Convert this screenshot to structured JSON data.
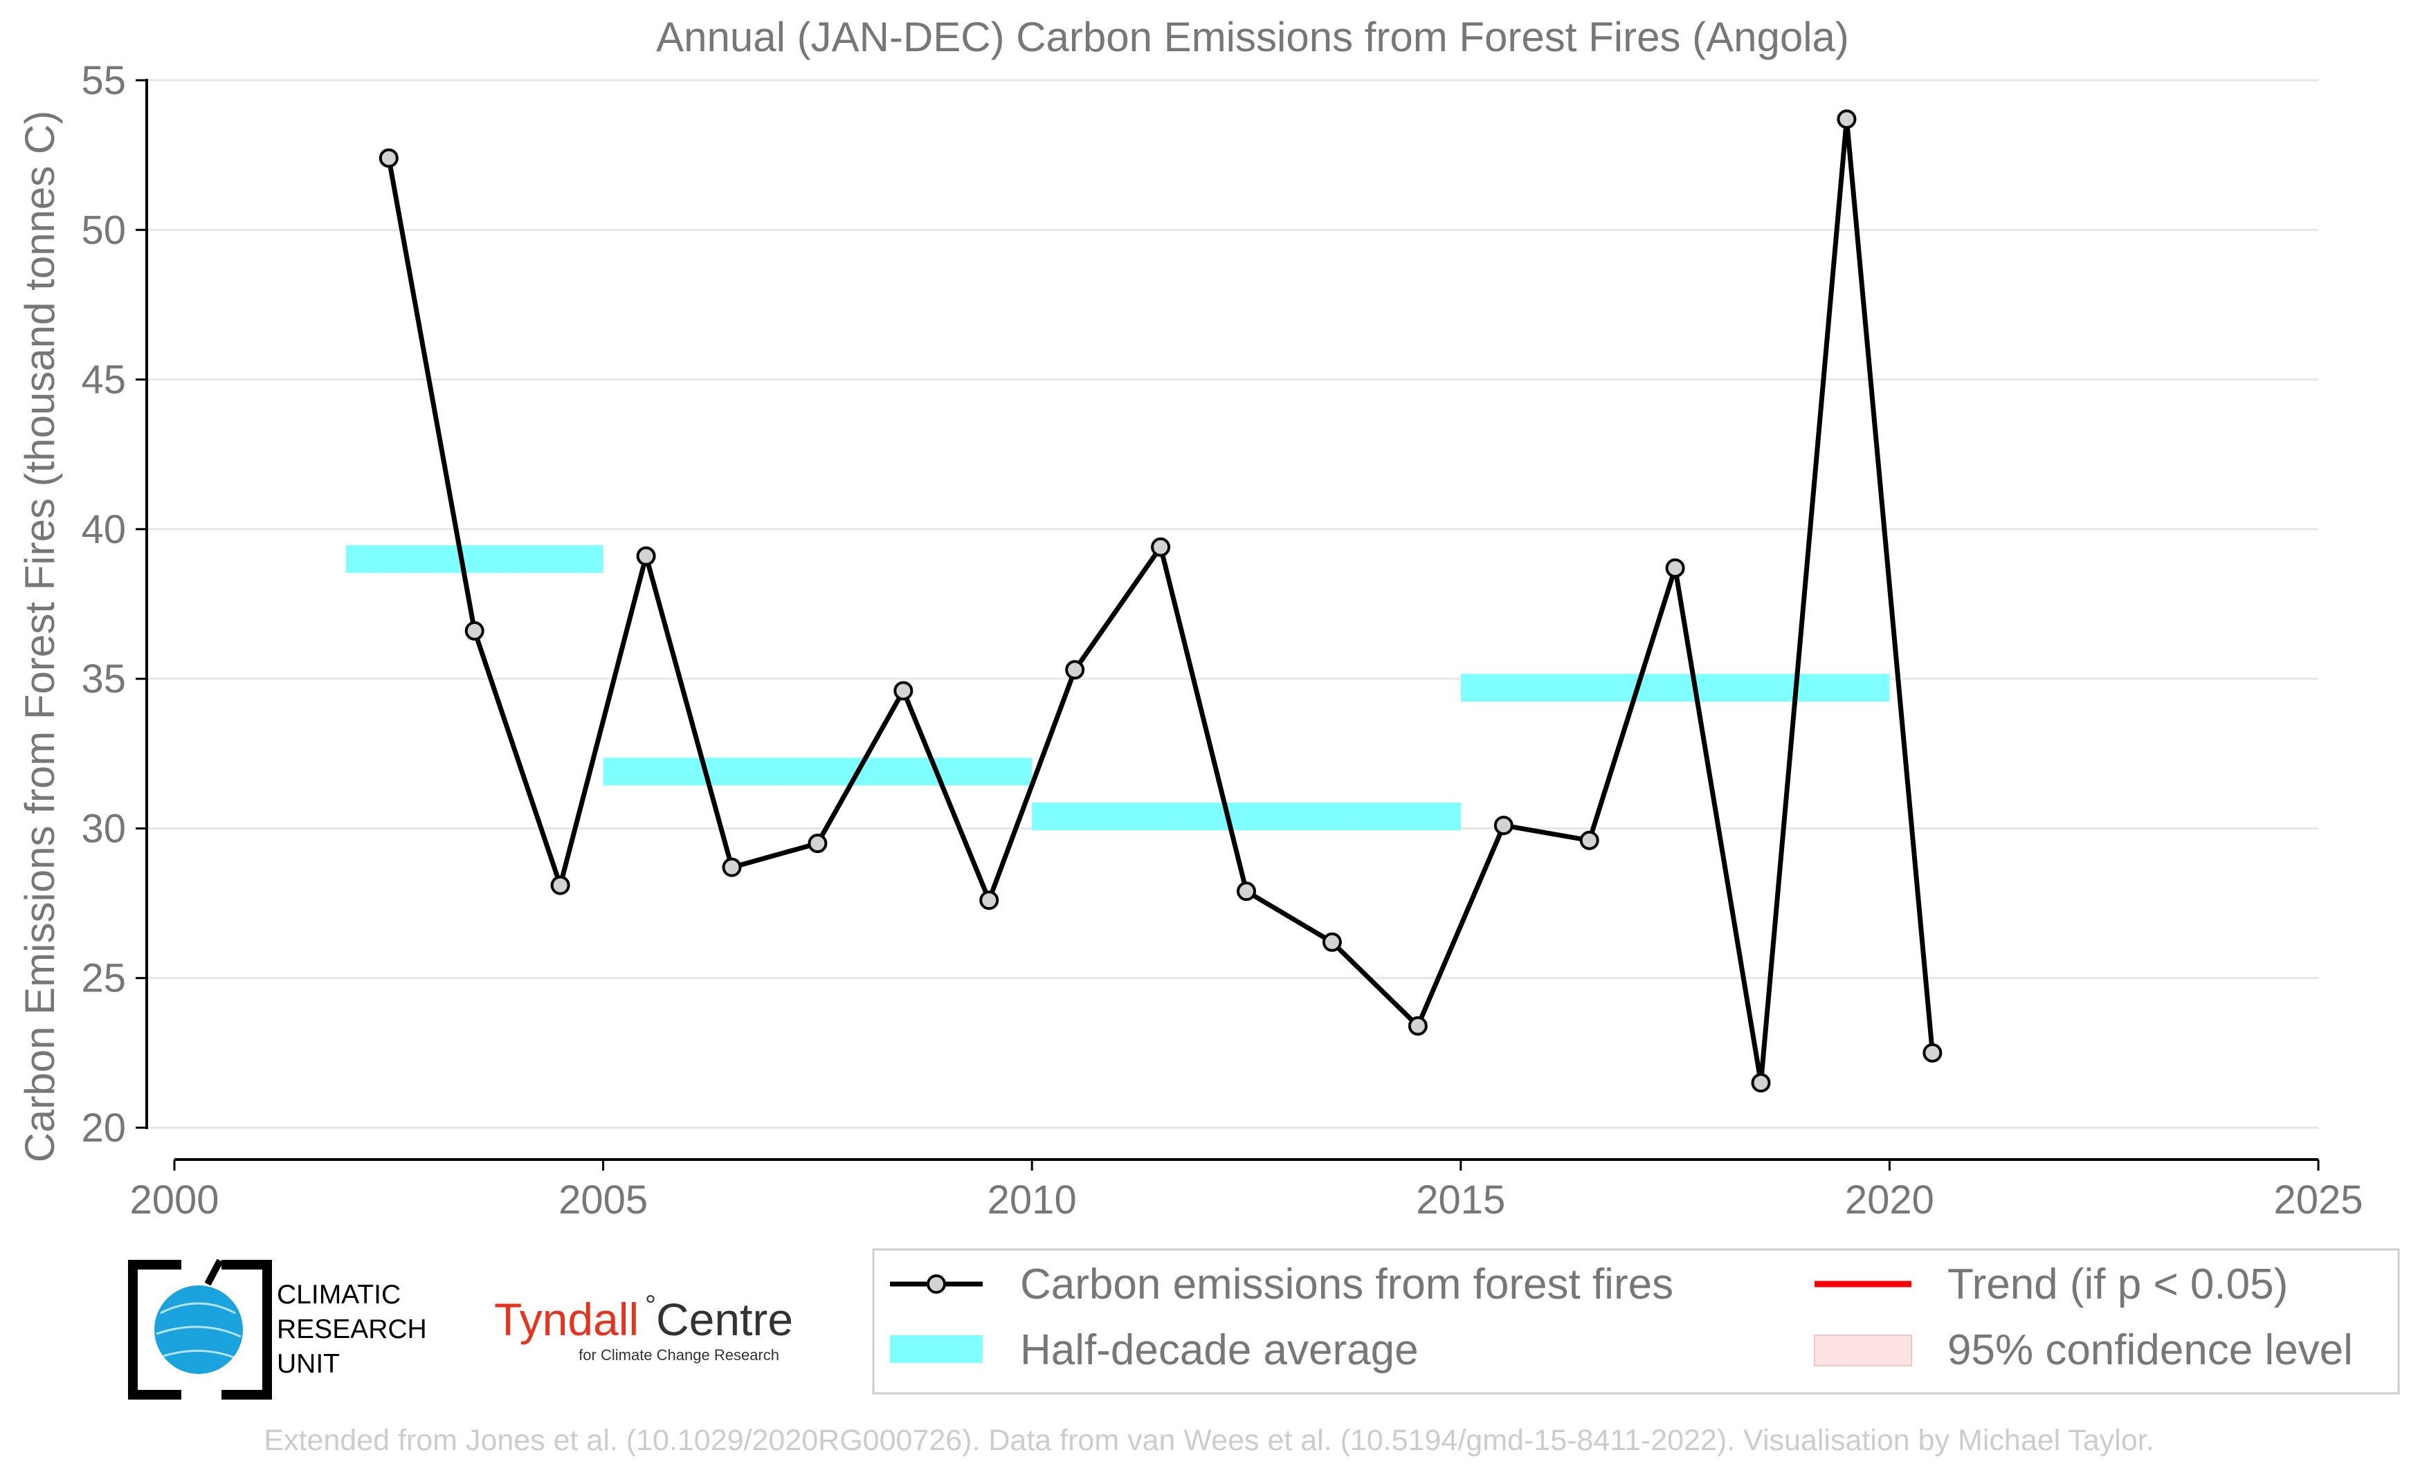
{
  "colors": {
    "series": "#000000",
    "marker_fill": "#d3d3d3",
    "half_decade": "#7fffff",
    "trend": "#ff0000",
    "ci_fill": "#fde3e3",
    "grid": "#e6e6e6",
    "text": "#777777",
    "footer": "#cccccc",
    "cru_blue": "#1aa3dc",
    "tyndall_red": "#e8321e"
  },
  "logos": {
    "cru_lines": [
      "CLIMATIC",
      "RESEARCH",
      "UNIT"
    ],
    "tyndall_main": "Tyndall",
    "tyndall_degree": "°",
    "tyndall_centre": "Centre",
    "tyndall_sub": "for Climate Change Research"
  },
  "footer": "Extended from Jones et al. (10.1029/2020RG000726). Data from van Wees et al. (10.5194/gmd-15-8411-2022). Visualisation by Michael Taylor.",
  "chart_data": {
    "type": "line",
    "title": "Annual (JAN-DEC) Carbon Emissions from Forest Fires (Angola)",
    "xlabel": "",
    "ylabel": "Carbon Emissions from Forest Fires (thousand tonnes C)",
    "xlim": [
      2000,
      2025
    ],
    "ylim": [
      20,
      55
    ],
    "xticks": [
      2000,
      2005,
      2010,
      2015,
      2020,
      2025
    ],
    "yticks": [
      20,
      25,
      30,
      35,
      40,
      45,
      50,
      55
    ],
    "grid": "horizontal",
    "legend_position": "bottom-right",
    "series": [
      {
        "name": "Carbon emissions from forest fires",
        "x": [
          2002.5,
          2003.5,
          2004.5,
          2005.5,
          2006.5,
          2007.5,
          2008.5,
          2009.5,
          2010.5,
          2011.5,
          2012.5,
          2013.5,
          2014.5,
          2015.5,
          2016.5,
          2017.5,
          2018.5,
          2019.5,
          2020.5
        ],
        "y": [
          52.4,
          36.6,
          28.1,
          39.1,
          28.7,
          29.5,
          34.6,
          27.6,
          35.3,
          39.4,
          27.9,
          26.2,
          23.4,
          30.1,
          29.6,
          38.7,
          21.5,
          53.7,
          22.5
        ]
      }
    ],
    "half_decade_average": {
      "name": "Half-decade average",
      "segments": [
        {
          "x0": 2002,
          "x1": 2005,
          "y": 39.0
        },
        {
          "x0": 2005,
          "x1": 2010,
          "y": 31.9
        },
        {
          "x0": 2010,
          "x1": 2015,
          "y": 30.4
        },
        {
          "x0": 2015,
          "x1": 2020,
          "y": 34.7
        }
      ]
    },
    "trend": {
      "name": "Trend (if p < 0.05)"
    },
    "confidence": {
      "name": "95% confidence level"
    }
  }
}
